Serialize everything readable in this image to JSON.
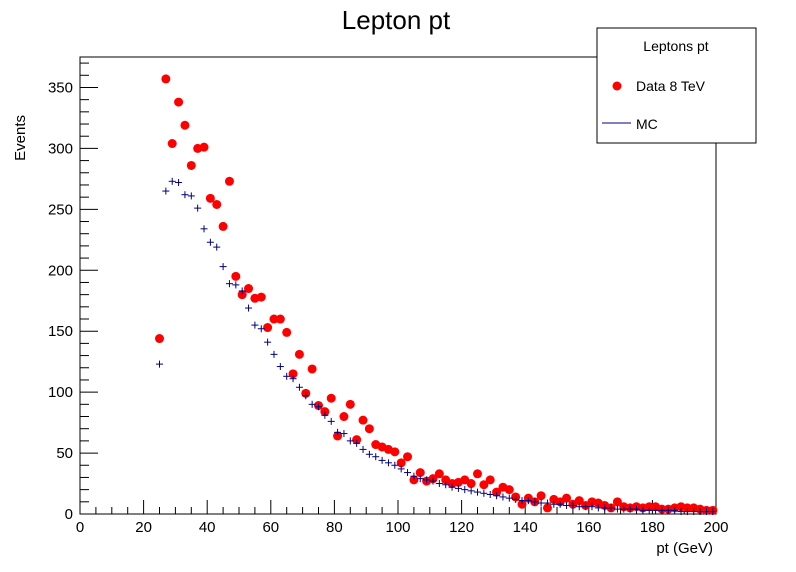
{
  "chart_data": {
    "type": "scatter",
    "title": "Lepton pt",
    "xlabel": "pt (GeV)",
    "ylabel": "Events",
    "xlim": [
      0,
      200
    ],
    "ylim": [
      0,
      375
    ],
    "xticks": [
      "0",
      "20",
      "40",
      "60",
      "80",
      "100",
      "120",
      "140",
      "160",
      "180",
      "200"
    ],
    "yticks": [
      "0",
      "50",
      "100",
      "150",
      "200",
      "250",
      "300",
      "350"
    ],
    "grid": false,
    "legend": {
      "title": "Leptons pt",
      "placement": "top-right",
      "entries": [
        "Data 8 TeV",
        "MC"
      ]
    },
    "series": [
      {
        "name": "Data 8 TeV",
        "color": "#ff0000",
        "marker": "circle",
        "x": [
          25,
          27,
          29,
          31,
          33,
          35,
          37,
          39,
          41,
          43,
          45,
          47,
          49,
          51,
          53,
          55,
          57,
          59,
          61,
          63,
          65,
          67,
          69,
          71,
          73,
          75,
          77,
          79,
          81,
          83,
          85,
          87,
          89,
          91,
          93,
          95,
          97,
          99,
          101,
          103,
          105,
          107,
          109,
          111,
          113,
          115,
          117,
          119,
          121,
          123,
          125,
          127,
          129,
          131,
          133,
          135,
          137,
          139,
          141,
          143,
          145,
          147,
          149,
          151,
          153,
          155,
          157,
          159,
          161,
          163,
          165,
          167,
          169,
          171,
          173,
          175,
          177,
          179,
          181,
          183,
          185,
          187,
          189,
          191,
          193,
          195,
          197,
          199
        ],
        "y": [
          144,
          357,
          304,
          338,
          319,
          286,
          300,
          301,
          259,
          254,
          236,
          273,
          195,
          180,
          185,
          177,
          178,
          153,
          160,
          160,
          149,
          115,
          131,
          99,
          119,
          89,
          84,
          95,
          64,
          80,
          90,
          61,
          77,
          70,
          57,
          55,
          53,
          51,
          42,
          47,
          28,
          34,
          27,
          29,
          33,
          28,
          25,
          26,
          28,
          25,
          33,
          24,
          28,
          18,
          22,
          20,
          14,
          8,
          13,
          10,
          15,
          5,
          12,
          10,
          13,
          8,
          11,
          7,
          10,
          9,
          7,
          5,
          10,
          6,
          5,
          6,
          5,
          6,
          6,
          4,
          4,
          5,
          6,
          5,
          5,
          4,
          3,
          3
        ]
      },
      {
        "name": "MC",
        "color": "#00007f",
        "marker": "cross",
        "x": [
          25,
          27,
          29,
          31,
          33,
          35,
          37,
          39,
          41,
          43,
          45,
          47,
          49,
          51,
          53,
          55,
          57,
          59,
          61,
          63,
          65,
          67,
          69,
          71,
          73,
          75,
          77,
          79,
          81,
          83,
          85,
          87,
          89,
          91,
          93,
          95,
          97,
          99,
          101,
          103,
          105,
          107,
          109,
          111,
          113,
          115,
          117,
          119,
          121,
          123,
          125,
          127,
          129,
          131,
          133,
          135,
          137,
          139,
          141,
          143,
          145,
          147,
          149,
          151,
          153,
          155,
          157,
          159,
          161,
          163,
          165,
          167,
          169,
          171,
          173,
          175,
          177,
          179,
          181,
          183,
          185,
          187,
          189,
          191,
          193,
          195,
          197,
          199
        ],
        "y": [
          123,
          265,
          273,
          272,
          262,
          261,
          251,
          234,
          223,
          219,
          203,
          189,
          188,
          183,
          169,
          155,
          152,
          141,
          131,
          121,
          113,
          111,
          104,
          97,
          90,
          88,
          81,
          76,
          67,
          66,
          60,
          58,
          53,
          49,
          47,
          44,
          42,
          40,
          37,
          34,
          31,
          29,
          28,
          27,
          25,
          24,
          22,
          21,
          20,
          19,
          18,
          17,
          16,
          15,
          14,
          13,
          12,
          11,
          11,
          10,
          9,
          9,
          8,
          8,
          7,
          7,
          6,
          6,
          6,
          5,
          5,
          5,
          4,
          4,
          4,
          4,
          3,
          3,
          3,
          3,
          3,
          3,
          2,
          2,
          2,
          2,
          2,
          2
        ]
      }
    ]
  }
}
